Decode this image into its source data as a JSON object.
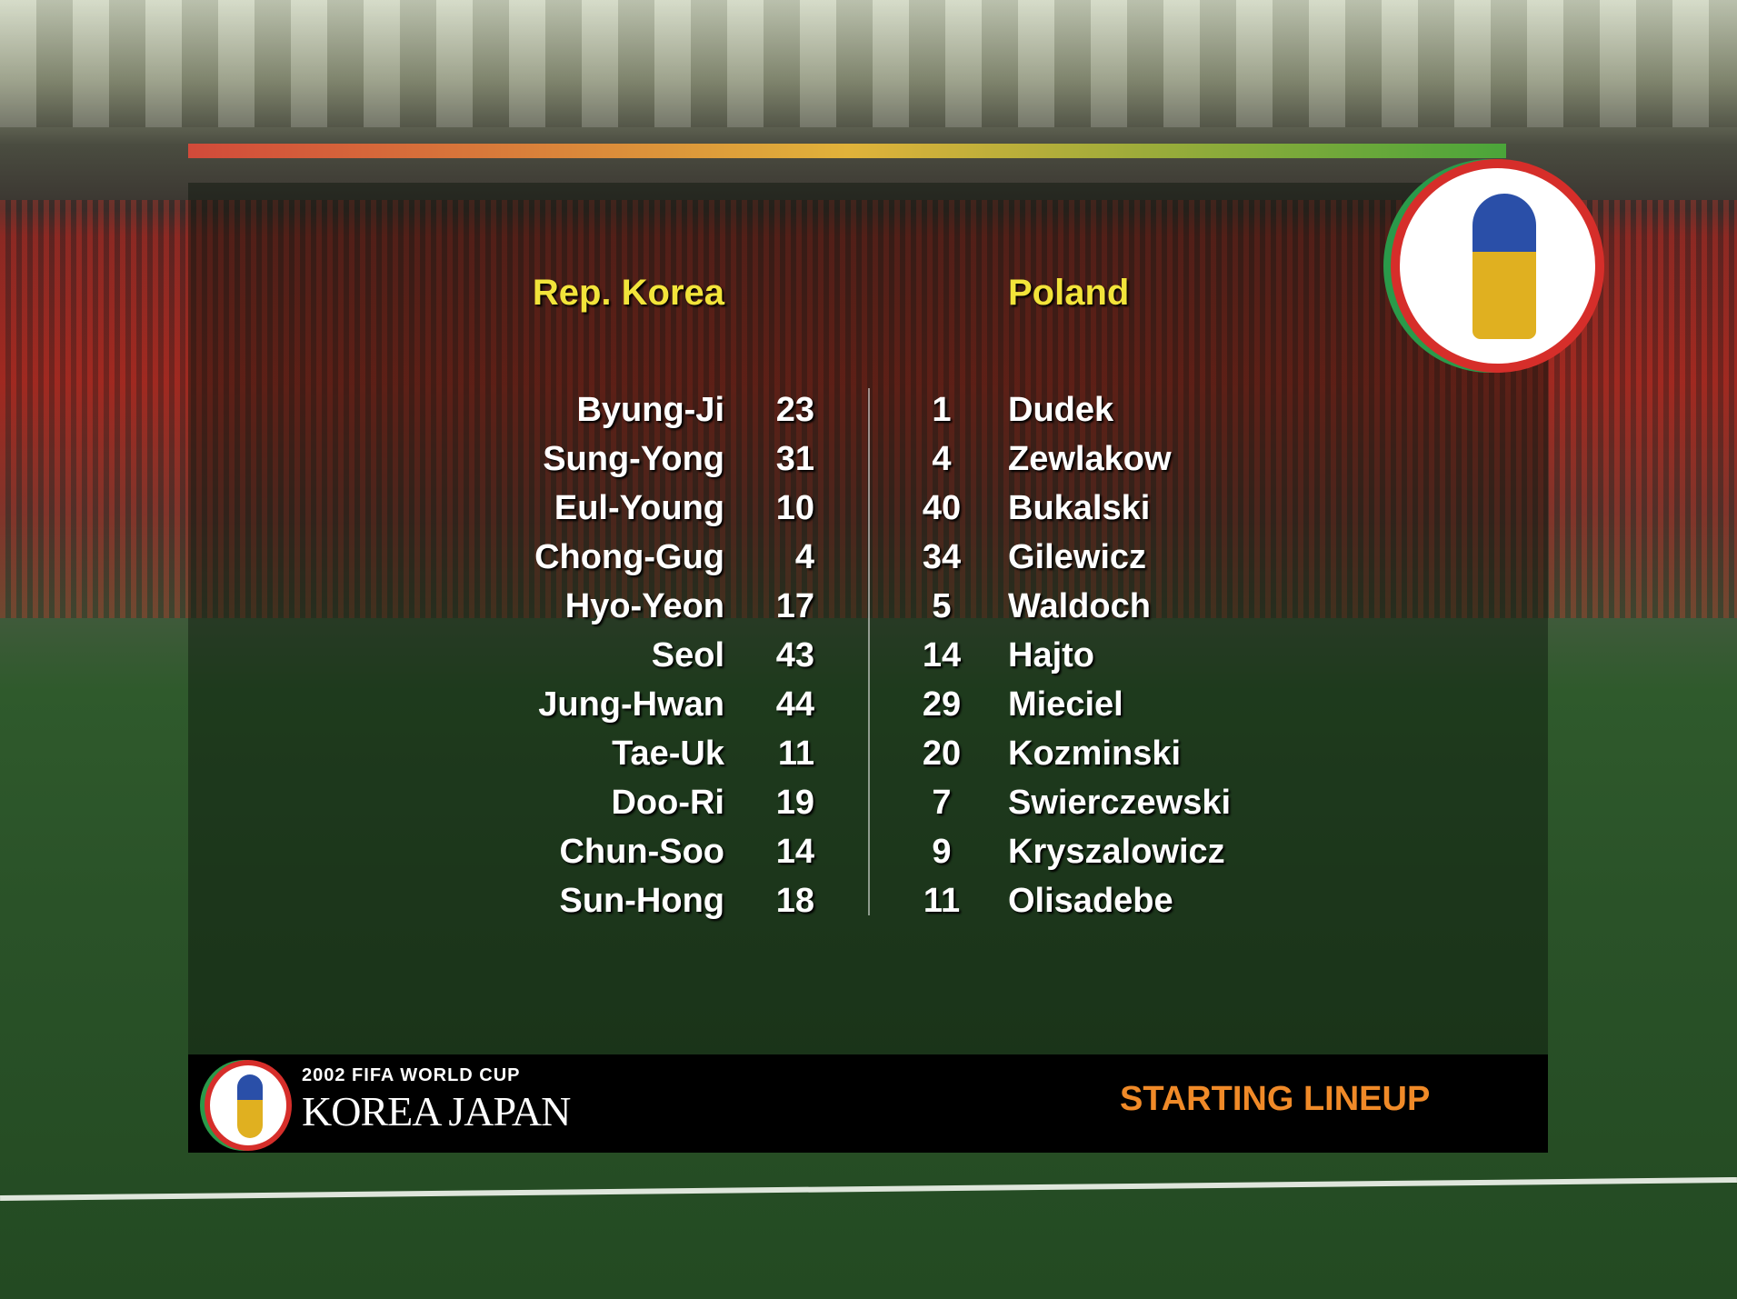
{
  "home_team": "Rep. Korea",
  "away_team": "Poland",
  "home_players": [
    {
      "name": "Byung-Ji",
      "number": "23"
    },
    {
      "name": "Sung-Yong",
      "number": "31"
    },
    {
      "name": "Eul-Young",
      "number": "10"
    },
    {
      "name": "Chong-Gug",
      "number": "4"
    },
    {
      "name": "Hyo-Yeon",
      "number": "17"
    },
    {
      "name": "Seol",
      "number": "43"
    },
    {
      "name": "Jung-Hwan",
      "number": "44"
    },
    {
      "name": "Tae-Uk",
      "number": "11"
    },
    {
      "name": "Doo-Ri",
      "number": "19"
    },
    {
      "name": "Chun-Soo",
      "number": "14"
    },
    {
      "name": "Sun-Hong",
      "number": "18"
    }
  ],
  "away_players": [
    {
      "name": "Dudek",
      "number": "1"
    },
    {
      "name": "Zewlakow",
      "number": "4"
    },
    {
      "name": "Bukalski",
      "number": "40"
    },
    {
      "name": "Gilewicz",
      "number": "34"
    },
    {
      "name": "Waldoch",
      "number": "5"
    },
    {
      "name": "Hajto",
      "number": "14"
    },
    {
      "name": "Mieciel",
      "number": "29"
    },
    {
      "name": "Kozminski",
      "number": "20"
    },
    {
      "name": "Swierczewski",
      "number": "7"
    },
    {
      "name": "Kryszalowicz",
      "number": "9"
    },
    {
      "name": "Olisadebe",
      "number": "11"
    }
  ],
  "footer": {
    "logo_line1": "2002 FIFA WORLD CUP",
    "logo_line2": "KOREA JAPAN",
    "screen_title": "STARTING LINEUP"
  },
  "colors": {
    "team_name": "#f2e43a",
    "screen_title": "#f08a28"
  }
}
